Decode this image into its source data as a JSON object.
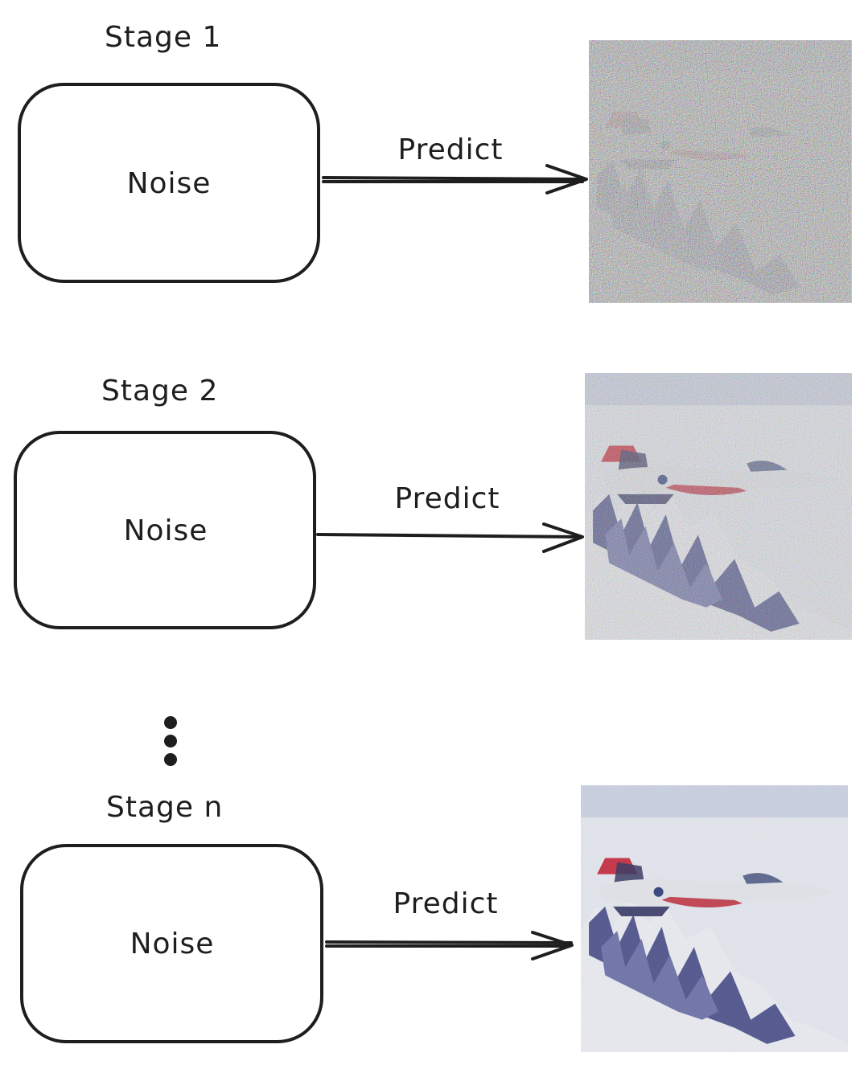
{
  "stages": [
    {
      "title": "Stage 1",
      "box_label": "Noise",
      "arrow_label": "Predict",
      "noise_level": 0.85
    },
    {
      "title": "Stage 2",
      "box_label": "Noise",
      "arrow_label": "Predict",
      "noise_level": 0.5
    },
    {
      "title": "Stage n",
      "box_label": "Noise",
      "arrow_label": "Predict",
      "noise_level": 0.12
    }
  ],
  "ellipsis_icon": "vertical-ellipsis-icon",
  "colors": {
    "stroke": "#1e1e1e",
    "sky": "#d9dde8",
    "snow": "#eef0f5",
    "mountain": "#4a4f8a",
    "tail_red": "#c8283c",
    "jet_body": "#e4e6ec",
    "jet_underside": "#c23a4a"
  }
}
